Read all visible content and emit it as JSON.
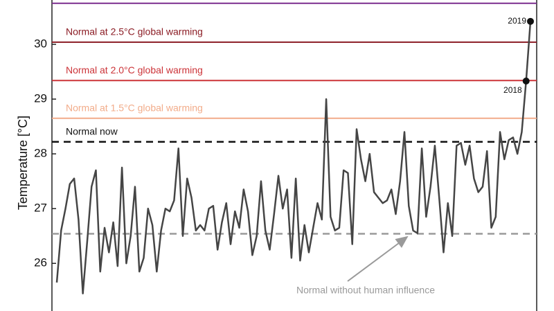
{
  "chart_data": {
    "type": "line",
    "y_label": "Temperature [°C]",
    "ylim": [
      25.13,
      30.81
    ],
    "yticks": [
      26,
      27,
      28,
      29,
      30
    ],
    "categories": [
      null,
      null,
      null,
      null,
      null,
      null,
      null,
      null,
      null,
      null,
      null,
      null,
      null,
      null,
      null,
      null,
      null,
      null,
      null,
      null,
      null,
      null,
      null,
      null,
      null,
      null,
      null,
      null,
      null,
      null,
      null,
      null,
      null,
      null,
      null,
      null,
      null,
      null,
      null,
      null,
      null,
      null,
      null,
      null,
      null,
      null,
      null,
      null,
      null,
      null,
      null,
      null,
      null,
      null,
      null,
      null,
      null,
      null,
      null,
      null,
      null,
      null,
      null,
      null,
      null,
      null,
      null,
      null,
      null,
      null,
      null,
      null,
      null,
      null,
      null,
      null,
      null,
      null,
      null,
      null,
      null,
      null,
      null,
      null,
      null,
      null,
      null,
      null,
      null,
      null,
      null,
      null,
      null,
      null,
      null,
      null,
      null,
      null,
      null,
      null,
      null,
      null,
      null,
      null,
      null,
      null,
      null,
      null,
      "2018",
      "2019"
    ],
    "series": [
      {
        "color": "#454545",
        "values": [
          25.65,
          26.6,
          27.0,
          27.45,
          27.55,
          26.8,
          25.45,
          26.4,
          27.4,
          27.7,
          25.85,
          26.65,
          26.2,
          26.75,
          25.95,
          27.75,
          26.0,
          26.5,
          27.4,
          25.85,
          26.1,
          27.0,
          26.7,
          25.85,
          26.6,
          27.0,
          26.95,
          27.15,
          28.1,
          26.5,
          27.55,
          27.2,
          26.6,
          26.7,
          26.6,
          27.0,
          27.05,
          26.25,
          26.75,
          27.1,
          26.35,
          26.95,
          26.65,
          27.35,
          26.95,
          26.15,
          26.5,
          27.5,
          26.6,
          26.25,
          26.9,
          27.6,
          27.0,
          27.35,
          26.1,
          27.55,
          26.05,
          26.7,
          26.2,
          26.65,
          27.1,
          26.8,
          29.0,
          26.85,
          26.6,
          26.65,
          27.7,
          27.65,
          26.35,
          28.45,
          27.9,
          27.5,
          28.0,
          27.3,
          27.2,
          27.1,
          27.15,
          27.35,
          26.9,
          27.5,
          28.4,
          27.05,
          26.6,
          26.55,
          28.1,
          26.85,
          27.4,
          28.15,
          27.2,
          26.2,
          27.1,
          26.5,
          28.15,
          28.2,
          27.8,
          28.15,
          27.55,
          27.3,
          27.4,
          28.05,
          26.65,
          26.85,
          28.4,
          27.9,
          28.25,
          28.3,
          28.0,
          28.4,
          29.33,
          30.42
        ]
      }
    ],
    "reference_lines": [
      {
        "value": 30.75,
        "color": "#7b2d8e",
        "dashed": false
      },
      {
        "label": "Normal at 2.5°C global warming",
        "value": 30.04,
        "color": "#8b1c24",
        "dashed": false
      },
      {
        "label": "Normal at 2.0°C global warming",
        "value": 29.34,
        "color": "#cc3338",
        "dashed": false
      },
      {
        "label": "Normal at 1.5°C global warming",
        "value": 28.65,
        "color": "#f2ac8a",
        "dashed": false
      },
      {
        "label": "Normal now",
        "value": 28.22,
        "color": "#111111",
        "dashed": true
      },
      {
        "label": "Normal without human influence",
        "value": 26.54,
        "color": "#9a9a9a",
        "dashed": true
      }
    ]
  }
}
